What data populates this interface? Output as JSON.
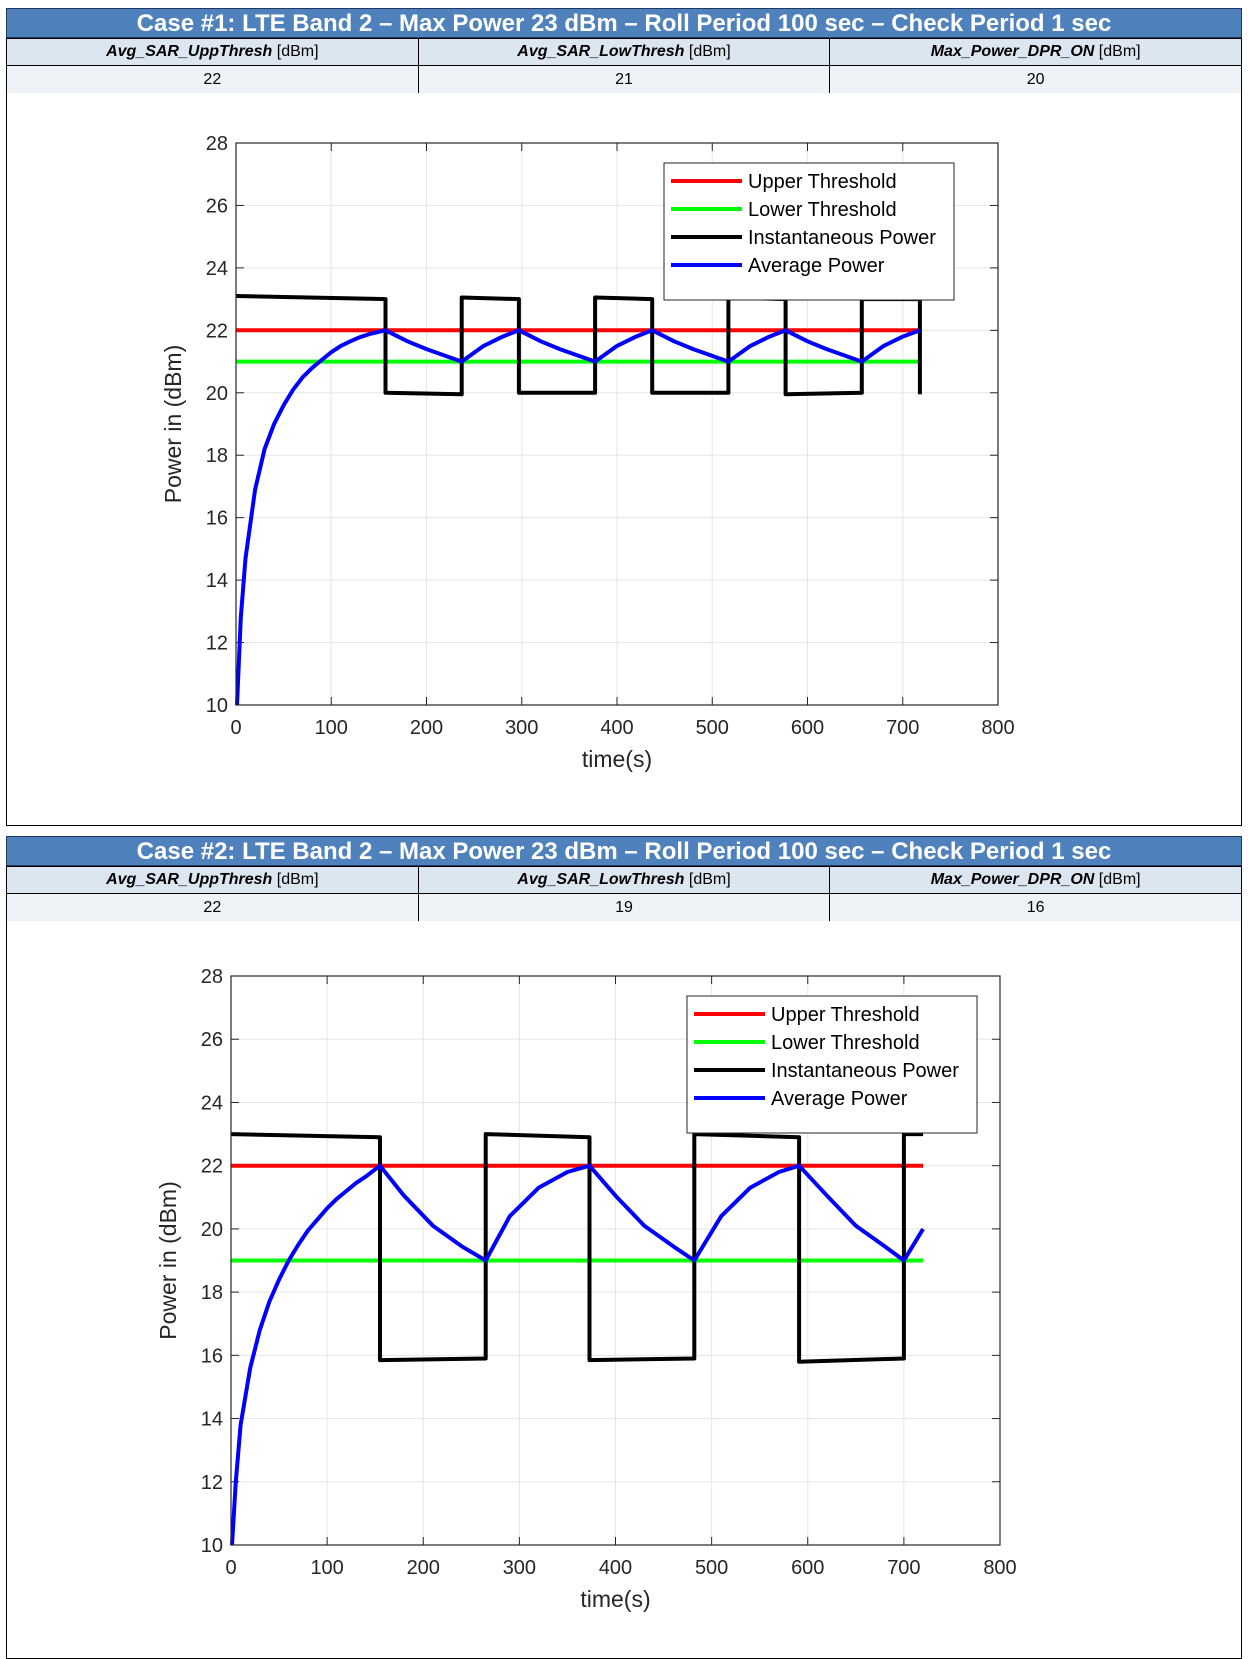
{
  "cases": [
    {
      "title": "Case #1: LTE Band 2 – Max Power 23 dBm – Roll Period 100 sec – Check Period 1 sec",
      "params": [
        {
          "name": "Avg_SAR_UppThresh",
          "unit": "[dBm]",
          "value": "22"
        },
        {
          "name": "Avg_SAR_LowThresh",
          "unit": "[dBm]",
          "value": "21"
        },
        {
          "name": "Max_Power_DPR_ON",
          "unit": "[dBm]",
          "value": "20"
        }
      ]
    },
    {
      "title": "Case #2: LTE Band 2 – Max Power 23 dBm – Roll Period 100 sec – Check Period 1 sec",
      "params": [
        {
          "name": "Avg_SAR_UppThresh",
          "unit": "[dBm]",
          "value": "22"
        },
        {
          "name": "Avg_SAR_LowThresh",
          "unit": "[dBm]",
          "value": "19"
        },
        {
          "name": "Max_Power_DPR_ON",
          "unit": "[dBm]",
          "value": "16"
        }
      ]
    }
  ],
  "chart_data": [
    {
      "type": "line",
      "xlabel": "time(s)",
      "ylabel": "Power in (dBm)",
      "xlim": [
        0,
        800
      ],
      "ylim": [
        10,
        28
      ],
      "xticks": [
        0,
        100,
        200,
        300,
        400,
        500,
        600,
        700,
        800
      ],
      "yticks": [
        10,
        12,
        14,
        16,
        18,
        20,
        22,
        24,
        26,
        28
      ],
      "grid": true,
      "legend_position": "top-right",
      "series": [
        {
          "name": "Upper Threshold",
          "color": "#ff0000",
          "x": [
            0,
            720
          ],
          "y": [
            22,
            22
          ]
        },
        {
          "name": "Lower Threshold",
          "color": "#00ff00",
          "x": [
            0,
            720
          ],
          "y": [
            21,
            21
          ]
        },
        {
          "name": "Instantaneous Power",
          "color": "#000000",
          "x": [
            0,
            157,
            157,
            237,
            237,
            297,
            297,
            377,
            377,
            437,
            437,
            517,
            517,
            577,
            577,
            657,
            657,
            718,
            718
          ],
          "y": [
            23.1,
            23.0,
            20.0,
            19.95,
            23.05,
            23.0,
            20.0,
            20.0,
            23.05,
            23.0,
            20.0,
            20.0,
            23.05,
            23.0,
            19.95,
            20.0,
            23.0,
            23.0,
            19.95
          ]
        },
        {
          "name": "Average Power",
          "color": "#0000ff",
          "x": [
            1,
            5,
            10,
            20,
            30,
            40,
            50,
            60,
            70,
            80,
            90,
            100,
            110,
            120,
            130,
            140,
            157,
            180,
            200,
            237,
            260,
            280,
            297,
            320,
            340,
            377,
            400,
            420,
            437,
            460,
            480,
            517,
            540,
            560,
            577,
            600,
            620,
            657,
            680,
            700,
            718
          ],
          "y": [
            10.0,
            12.8,
            14.7,
            16.9,
            18.2,
            19.0,
            19.6,
            20.1,
            20.5,
            20.8,
            21.05,
            21.3,
            21.5,
            21.65,
            21.78,
            21.88,
            22.0,
            21.65,
            21.4,
            21.0,
            21.5,
            21.8,
            22.0,
            21.65,
            21.4,
            21.0,
            21.5,
            21.8,
            22.0,
            21.65,
            21.4,
            21.0,
            21.5,
            21.8,
            22.0,
            21.65,
            21.4,
            21.0,
            21.5,
            21.8,
            22.0
          ]
        }
      ]
    },
    {
      "type": "line",
      "xlabel": "time(s)",
      "ylabel": "Power in (dBm)",
      "xlim": [
        0,
        800
      ],
      "ylim": [
        10,
        28
      ],
      "xticks": [
        0,
        100,
        200,
        300,
        400,
        500,
        600,
        700,
        800
      ],
      "yticks": [
        10,
        12,
        14,
        16,
        18,
        20,
        22,
        24,
        26,
        28
      ],
      "grid": true,
      "legend_position": "top-right",
      "series": [
        {
          "name": "Upper Threshold",
          "color": "#ff0000",
          "x": [
            0,
            720
          ],
          "y": [
            22,
            22
          ]
        },
        {
          "name": "Lower Threshold",
          "color": "#00ff00",
          "x": [
            0,
            720
          ],
          "y": [
            19,
            19
          ]
        },
        {
          "name": "Instantaneous Power",
          "color": "#000000",
          "x": [
            0,
            155,
            155,
            265,
            265,
            373,
            373,
            482,
            482,
            591,
            591,
            700,
            700,
            720
          ],
          "y": [
            23.0,
            22.9,
            15.85,
            15.9,
            23.0,
            22.9,
            15.85,
            15.9,
            23.0,
            22.9,
            15.8,
            15.9,
            23.0,
            23.0
          ]
        },
        {
          "name": "Average Power",
          "color": "#0000ff",
          "x": [
            1,
            5,
            10,
            20,
            30,
            40,
            50,
            60,
            70,
            80,
            90,
            100,
            110,
            120,
            130,
            140,
            155,
            180,
            210,
            240,
            265,
            290,
            320,
            350,
            373,
            400,
            430,
            460,
            482,
            510,
            540,
            570,
            591,
            620,
            650,
            680,
            700,
            720
          ],
          "y": [
            10.0,
            12.0,
            13.8,
            15.6,
            16.8,
            17.7,
            18.4,
            19.0,
            19.5,
            19.95,
            20.3,
            20.65,
            20.95,
            21.2,
            21.45,
            21.65,
            22.0,
            21.05,
            20.1,
            19.45,
            19.0,
            20.4,
            21.3,
            21.8,
            22.0,
            21.05,
            20.1,
            19.45,
            19.0,
            20.4,
            21.3,
            21.8,
            22.0,
            21.05,
            20.1,
            19.45,
            19.0,
            20.0
          ]
        }
      ]
    }
  ]
}
